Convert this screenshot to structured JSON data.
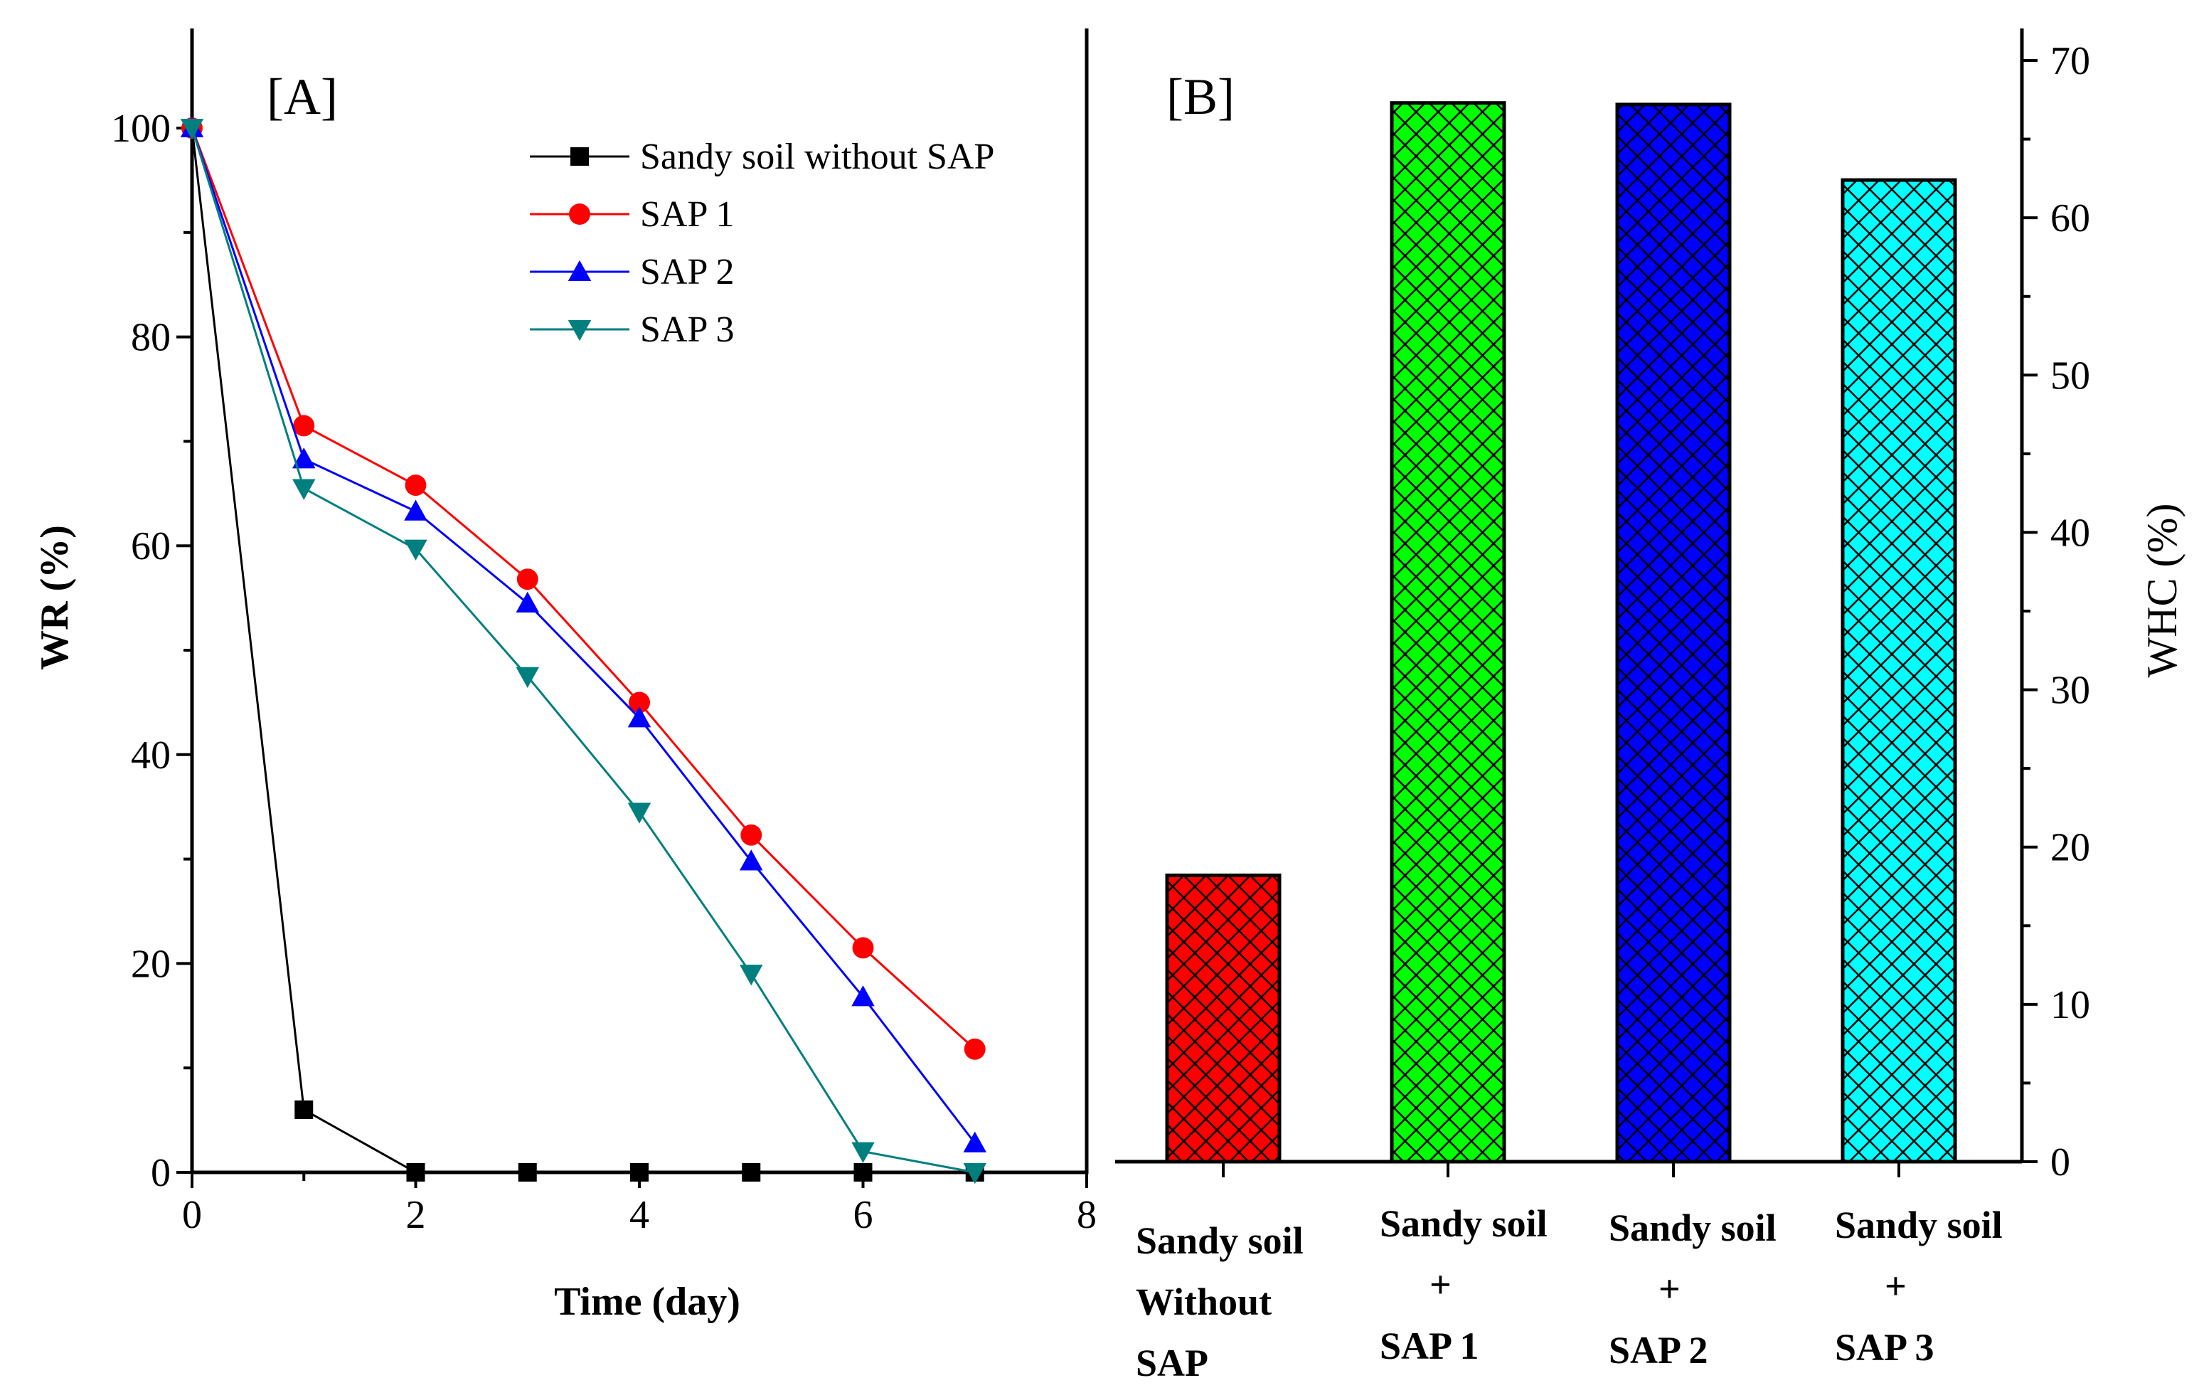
{
  "chart_data": [
    {
      "panel": "[A]",
      "type": "line",
      "xlabel": "Time (day)",
      "ylabel": "WR (%)",
      "xlim": [
        0,
        8
      ],
      "ylim": [
        0,
        108
      ],
      "xticks": [
        "0",
        "2",
        "4",
        "6",
        "8"
      ],
      "yticks": [
        "0",
        "20",
        "40",
        "60",
        "80",
        "100"
      ],
      "legend_position": "top-right",
      "series": [
        {
          "name": "Sandy soil without SAP",
          "color": "#000000",
          "marker": "square",
          "x": [
            0,
            1,
            2,
            3,
            4,
            5,
            6,
            7
          ],
          "y": [
            100,
            6,
            0,
            0,
            0,
            0,
            0,
            0
          ]
        },
        {
          "name": "SAP 1",
          "color": "#ff0000",
          "marker": "circle",
          "x": [
            0,
            1,
            2,
            3,
            4,
            5,
            6,
            7
          ],
          "y": [
            100,
            71.5,
            65.8,
            56.8,
            45,
            32.3,
            21.5,
            11.8
          ]
        },
        {
          "name": "SAP 2",
          "color": "#0000ff",
          "marker": "triangle-up",
          "x": [
            0,
            1,
            2,
            3,
            4,
            5,
            6,
            7
          ],
          "y": [
            100,
            68.3,
            63.3,
            54.5,
            43.5,
            29.8,
            16.8,
            2.8
          ]
        },
        {
          "name": "SAP 3",
          "color": "#007f7f",
          "marker": "triangle-down",
          "x": [
            0,
            1,
            2,
            3,
            4,
            5,
            6,
            7
          ],
          "y": [
            100,
            65.5,
            59.7,
            47.5,
            34.5,
            19,
            2,
            0
          ]
        }
      ]
    },
    {
      "panel": "[B]",
      "type": "bar",
      "ylabel": "WHC (%)",
      "ylim": [
        0,
        70
      ],
      "yticks": [
        "0",
        "10",
        "20",
        "30",
        "40",
        "50",
        "60",
        "70"
      ],
      "categories": [
        [
          "Sandy soil",
          "Without",
          "SAP"
        ],
        [
          "Sandy soil",
          "+",
          "SAP 1"
        ],
        [
          "Sandy soil",
          "+",
          "SAP 2"
        ],
        [
          "Sandy soil",
          "+",
          "SAP 3"
        ]
      ],
      "values": [
        18.2,
        67.3,
        67.2,
        62.4
      ],
      "colors": [
        "#ff0000",
        "#00ff00",
        "#0000ff",
        "#00ffff"
      ]
    }
  ]
}
